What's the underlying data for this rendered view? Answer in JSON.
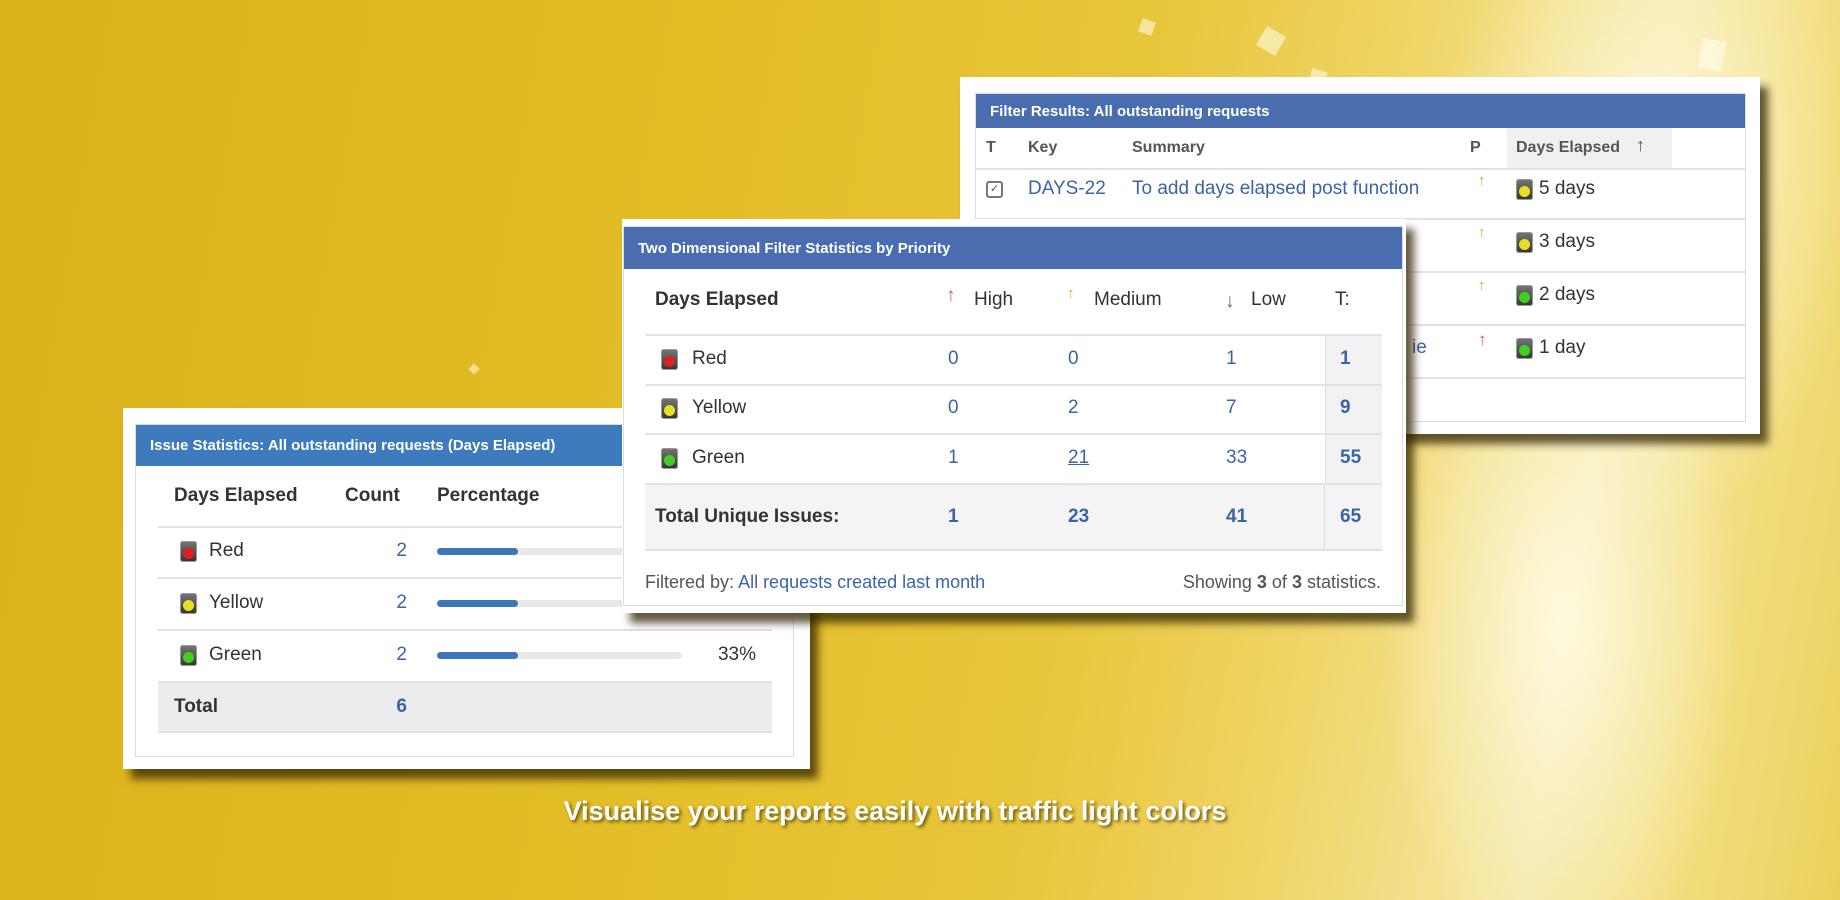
{
  "colors": {
    "header_blue": "#4a6db0",
    "issue_header_blue": "#3d7bbd",
    "link": "#3b64a8",
    "red": "#e02020",
    "yellow": "#e8e020",
    "green": "#40d020"
  },
  "filter_results": {
    "title": "Filter Results: All outstanding requests",
    "columns": [
      "T",
      "Key",
      "Summary",
      "P",
      "Days Elapsed"
    ],
    "sort_icon": "arrow-up-icon",
    "rows": [
      {
        "type_icon": "checkbox-task-icon",
        "key": "DAYS-22",
        "summary": "To add days elapsed post function",
        "priority": "medium",
        "light": "yellow",
        "days": "5 days"
      },
      {
        "priority": "medium",
        "light": "yellow",
        "days": "3 days"
      },
      {
        "priority": "medium",
        "light": "green",
        "days": "2 days"
      },
      {
        "summary": "ie",
        "priority": "high",
        "light": "green",
        "days": "1 day"
      }
    ]
  },
  "two_dim": {
    "title": "Two Dimensional Filter Statistics by Priority",
    "columns": [
      "Days Elapsed",
      "High",
      "Medium",
      "Low",
      "T:"
    ],
    "rows": [
      {
        "label": "Red",
        "light": "red",
        "high": "0",
        "medium": "0",
        "low": "1",
        "total": "1"
      },
      {
        "label": "Yellow",
        "light": "yellow",
        "high": "0",
        "medium": "2",
        "low": "7",
        "total": "9"
      },
      {
        "label": "Green",
        "light": "green",
        "high": "1",
        "medium": "21",
        "low": "33",
        "total": "55"
      }
    ],
    "totals": {
      "label": "Total Unique Issues:",
      "high": "1",
      "medium": "23",
      "low": "41",
      "total": "65"
    },
    "filtered_by_label": "Filtered by:",
    "filtered_by_link": "All requests created last month",
    "showing_pre": "Showing",
    "showing_n": "3",
    "showing_of": "of",
    "showing_m": "3",
    "showing_post": "statistics."
  },
  "issue_stats": {
    "title": "Issue Statistics: All outstanding requests (Days Elapsed)",
    "columns": [
      "Days Elapsed",
      "Count",
      "Percentage"
    ],
    "rows": [
      {
        "label": "Red",
        "light": "red",
        "count": "2",
        "percent": 33
      },
      {
        "label": "Yellow",
        "light": "yellow",
        "count": "2",
        "percent": 33
      },
      {
        "label": "Green",
        "light": "green",
        "count": "2",
        "percent": 33,
        "percent_label": "33%"
      }
    ],
    "total_label": "Total",
    "total_count": "6"
  },
  "caption": "Visualise your reports easily with traffic light colors"
}
